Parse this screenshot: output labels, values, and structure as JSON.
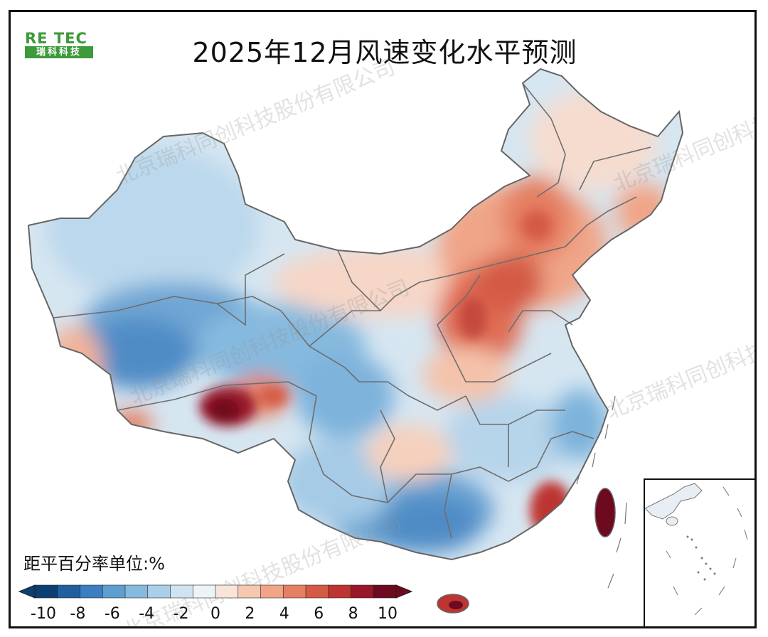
{
  "title": "2025年12月风速变化水平预测",
  "logo": {
    "brand": "RE TEC",
    "cn": "瑞科科技"
  },
  "watermark": "北京瑞科同创科技股份有限公司",
  "legend": {
    "unit_label": "距平百分率单位:%",
    "ticks": [
      "-10",
      "-8",
      "-6",
      "-4",
      "-2",
      "0",
      "2",
      "4",
      "6",
      "8",
      "10"
    ],
    "colors": [
      "#0b3f73",
      "#1f5f9e",
      "#3a7fbf",
      "#5f9ed0",
      "#86b9de",
      "#aacfe8",
      "#cfe3f1",
      "#eef3f6",
      "#f8e4d8",
      "#f6c8b0",
      "#f0a588",
      "#e57f62",
      "#d45a45",
      "#bd3532",
      "#98172a",
      "#6e0a1f"
    ],
    "low_color": "#0b3f73",
    "high_color": "#6e0a1f"
  },
  "map": {
    "region": "China",
    "high_anomaly_areas": [
      "内蒙古中部",
      "华北",
      "山西",
      "西藏中部",
      "福建沿海",
      "台湾",
      "海南"
    ],
    "low_anomaly_areas": [
      "新疆",
      "青海",
      "西藏北部",
      "云南",
      "广西",
      "贵州"
    ]
  }
}
